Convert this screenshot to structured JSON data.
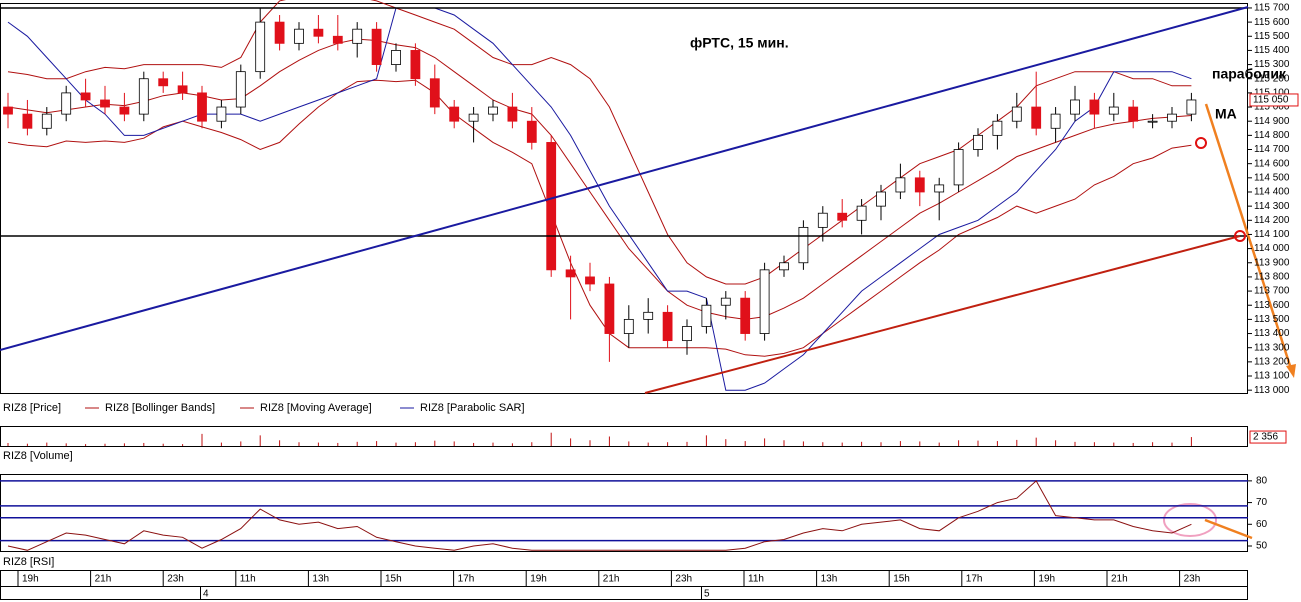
{
  "chart_data": [
    {
      "type": "candlestick",
      "title": "фРТС, 15 мин.",
      "name": "RIZ8 [Price]",
      "open": [
        115000,
        114950,
        114850,
        114950,
        115100,
        115050,
        115000,
        114950,
        115200,
        115150,
        115100,
        114900,
        115000,
        115250,
        115600,
        115450,
        115550,
        115500,
        115450,
        115550,
        115300,
        115400,
        115200,
        115000,
        114900,
        114950,
        115000,
        114900,
        114750,
        113850,
        113800,
        113750,
        113400,
        113500,
        113550,
        113350,
        113450,
        113600,
        113650,
        113400,
        113850,
        113900,
        114150,
        114250,
        114200,
        114300,
        114400,
        114500,
        114400,
        114450,
        114700,
        114800,
        114900,
        115000,
        114850,
        114950,
        115050,
        114950,
        115000,
        114900,
        114900,
        114950
      ],
      "high": [
        115100,
        115050,
        115000,
        115150,
        115200,
        115150,
        115100,
        115250,
        115250,
        115250,
        115150,
        115050,
        115300,
        115700,
        115650,
        115600,
        115650,
        115650,
        115600,
        115600,
        115450,
        115450,
        115300,
        115050,
        115000,
        115050,
        115100,
        115000,
        114800,
        113950,
        113900,
        113800,
        113600,
        113650,
        113600,
        113500,
        113650,
        113700,
        113700,
        113900,
        113950,
        114200,
        114300,
        114350,
        114350,
        114450,
        114600,
        114550,
        114500,
        114750,
        114850,
        114950,
        115100,
        115250,
        115000,
        115150,
        115100,
        115100,
        115050,
        114950,
        115000,
        115100
      ],
      "low": [
        114850,
        114800,
        114800,
        114900,
        115000,
        114950,
        114900,
        114900,
        115100,
        115050,
        114850,
        114850,
        114950,
        115200,
        115400,
        115400,
        115450,
        115400,
        115350,
        115250,
        115250,
        115150,
        114950,
        114850,
        114750,
        114900,
        114850,
        114700,
        113800,
        113500,
        113700,
        113200,
        113300,
        113400,
        113300,
        113250,
        113400,
        113500,
        113350,
        113350,
        113800,
        113850,
        114050,
        114150,
        114100,
        114200,
        114350,
        114300,
        114200,
        114400,
        114650,
        114700,
        114850,
        114800,
        114750,
        114900,
        114850,
        114900,
        114850,
        114850,
        114850,
        114900
      ],
      "close": [
        114950,
        114850,
        114950,
        115100,
        115050,
        115000,
        114950,
        115200,
        115150,
        115100,
        114900,
        115000,
        115250,
        115600,
        115450,
        115550,
        115500,
        115450,
        115550,
        115300,
        115400,
        115200,
        115000,
        114900,
        114950,
        115000,
        114900,
        114750,
        113850,
        113800,
        113750,
        113400,
        113500,
        113550,
        113350,
        113450,
        113600,
        113650,
        113400,
        113850,
        113900,
        114150,
        114250,
        114200,
        114300,
        114400,
        114500,
        114400,
        114450,
        114700,
        114800,
        114900,
        115000,
        114850,
        114950,
        115050,
        114950,
        115000,
        114900,
        114900,
        114950,
        115050
      ],
      "up_color": "#ffffff",
      "down_color": "#e0101a",
      "ylim": [
        112980,
        115735
      ],
      "yticks": [
        {
          "value": 115700,
          "label": "115 700"
        },
        {
          "value": 115600,
          "label": "115 600"
        },
        {
          "value": 115500,
          "label": "115 500"
        },
        {
          "value": 115400,
          "label": "115 400"
        },
        {
          "value": 115300,
          "label": "115 300"
        },
        {
          "value": 115200,
          "label": "115 200"
        },
        {
          "value": 115100,
          "label": "115 100"
        },
        {
          "value": 115000,
          "label": "115 000"
        },
        {
          "value": 114900,
          "label": "114 900"
        },
        {
          "value": 114800,
          "label": "114 800"
        },
        {
          "value": 114700,
          "label": "114 700"
        },
        {
          "value": 114600,
          "label": "114 600"
        },
        {
          "value": 114500,
          "label": "114 500"
        },
        {
          "value": 114400,
          "label": "114 400"
        },
        {
          "value": 114300,
          "label": "114 300"
        },
        {
          "value": 114200,
          "label": "114 200"
        },
        {
          "value": 114100,
          "label": "114 100"
        },
        {
          "value": 114000,
          "label": "114 000"
        },
        {
          "value": 113900,
          "label": "113 900"
        },
        {
          "value": 113800,
          "label": "113 800"
        },
        {
          "value": 113700,
          "label": "113 700"
        },
        {
          "value": 113600,
          "label": "113 600"
        },
        {
          "value": 113500,
          "label": "113 500"
        },
        {
          "value": 113400,
          "label": "113 400"
        },
        {
          "value": 113300,
          "label": "113 300"
        },
        {
          "value": 113200,
          "label": "113 200"
        },
        {
          "value": 113100,
          "label": "113 100"
        },
        {
          "value": 113000,
          "label": "113 000"
        }
      ],
      "last_price": {
        "value": 115050,
        "label": "115 050"
      },
      "overlays": [
        {
          "name": "RIZ8 [Bollinger Bands]",
          "color": "#b01010",
          "upper": [
            115250,
            115230,
            115200,
            115200,
            115250,
            115280,
            115270,
            115300,
            115300,
            115300,
            115300,
            115280,
            115350,
            115600,
            115750,
            115780,
            115800,
            115800,
            115780,
            115750,
            115700,
            115650,
            115600,
            115550,
            115450,
            115350,
            115300,
            115300,
            115350,
            115300,
            115200,
            115000,
            114700,
            114400,
            114100,
            113900,
            113800,
            113750,
            113750,
            113800,
            113900,
            114000,
            114100,
            114200,
            114300,
            114400,
            114500,
            114600,
            114650,
            114700,
            114800,
            114900,
            115000,
            115150,
            115200,
            115250,
            115250,
            115250,
            115200,
            115200,
            115150,
            115150
          ],
          "lower": [
            114750,
            114730,
            114720,
            114760,
            114750,
            114760,
            114750,
            114780,
            114860,
            114900,
            114860,
            114820,
            114770,
            114700,
            114750,
            114880,
            115000,
            115100,
            115180,
            115190,
            115180,
            115190,
            115100,
            114950,
            114850,
            114750,
            114680,
            114600,
            114250,
            113900,
            113600,
            113400,
            113300,
            113300,
            113300,
            113300,
            113300,
            113290,
            113250,
            113240,
            113260,
            113300,
            113400,
            113500,
            113600,
            113700,
            113800,
            113900,
            113990,
            114100,
            114160,
            114220,
            114300,
            114250,
            114300,
            114350,
            114450,
            114510,
            114600,
            114640,
            114710,
            114730
          ]
        },
        {
          "name": "RIZ8 [Moving Average]",
          "color": "#b01010",
          "values": [
            115000,
            114980,
            114960,
            114980,
            115000,
            115020,
            115010,
            115040,
            115080,
            115100,
            115080,
            115050,
            115060,
            115150,
            115250,
            115330,
            115400,
            115450,
            115480,
            115470,
            115440,
            115420,
            115350,
            115250,
            115150,
            115050,
            114990,
            114950,
            114800,
            114600,
            114400,
            114200,
            114000,
            113850,
            113700,
            113600,
            113550,
            113520,
            113500,
            113520,
            113580,
            113650,
            113750,
            113850,
            113950,
            114050,
            114150,
            114250,
            114320,
            114400,
            114480,
            114560,
            114650,
            114700,
            114750,
            114800,
            114850,
            114880,
            114900,
            114920,
            114930,
            114940
          ]
        },
        {
          "name": "RIZ8 [Parabolic SAR]",
          "color": "#1a1aa0",
          "values": [
            115600,
            115500,
            115350,
            115200,
            115050,
            114950,
            114800,
            114800,
            114850,
            114900,
            114950,
            114950,
            114950,
            114900,
            114950,
            115000,
            115050,
            115100,
            115150,
            115200,
            115700,
            115700,
            115700,
            115650,
            115550,
            115450,
            115300,
            115150,
            115000,
            114800,
            114550,
            114300,
            114100,
            113900,
            113700,
            113700,
            113650,
            113000,
            113000,
            113050,
            113150,
            113250,
            113400,
            113550,
            113700,
            113800,
            113900,
            114000,
            114100,
            114150,
            114200,
            114300,
            114400,
            114550,
            114700,
            114900,
            115000,
            115250,
            115250,
            115250,
            115250,
            115200
          ]
        }
      ],
      "annotations": [
        "параболик",
        "MA"
      ]
    },
    {
      "type": "bar",
      "title": "RIZ8 [Volume]",
      "color": "#c01010",
      "values": [
        800,
        600,
        900,
        700,
        500,
        600,
        700,
        800,
        600,
        500,
        3200,
        900,
        1200,
        2800,
        1500,
        1000,
        900,
        800,
        1100,
        1300,
        900,
        1000,
        1400,
        1200,
        800,
        900,
        700,
        1000,
        3500,
        2000,
        1500,
        2500,
        1200,
        900,
        1000,
        1100,
        2800,
        1800,
        1300,
        2000,
        1500,
        1200,
        1000,
        900,
        1100,
        1000,
        1300,
        1200,
        900,
        1500,
        1400,
        1300,
        1600,
        2200,
        1500,
        1100,
        1000,
        900,
        800,
        1000,
        900,
        2356
      ],
      "ylim": [
        0,
        5000
      ],
      "yticks": [
        {
          "value": 2356,
          "label": "2 356"
        }
      ]
    },
    {
      "type": "line",
      "title": "RIZ8 [RSI]",
      "color": "#8b1010",
      "values": [
        50,
        48,
        52,
        56,
        55,
        53,
        51,
        57,
        55,
        54,
        49,
        53,
        58,
        67,
        62,
        60,
        61,
        58,
        59,
        54,
        52,
        50,
        49,
        48,
        50,
        51,
        49,
        48,
        48,
        48,
        48,
        48,
        48,
        48,
        48,
        48,
        48,
        48,
        49,
        52,
        53,
        56,
        58,
        57,
        60,
        61,
        62,
        58,
        57,
        63,
        66,
        70,
        72,
        80,
        64,
        63,
        62,
        62,
        59,
        57,
        56,
        60
      ],
      "ylim": [
        47.7,
        82.7
      ],
      "yticks": [
        80,
        70,
        60,
        50
      ],
      "levels": [
        80,
        68.5,
        63,
        52.5
      ],
      "level_color": "#10109a"
    }
  ],
  "time_axis": {
    "labels": [
      "19h",
      "21h",
      "23h",
      "11h",
      "13h",
      "15h",
      "17h",
      "19h",
      "21h",
      "23h",
      "11h",
      "13h",
      "15h",
      "17h",
      "19h",
      "21h",
      "23h"
    ],
    "days": [
      "4",
      "5"
    ]
  }
}
